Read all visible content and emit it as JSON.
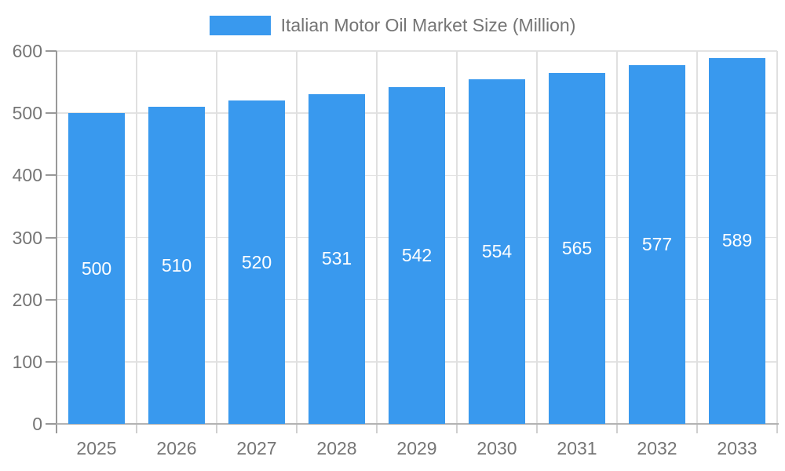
{
  "chart_data": {
    "type": "bar",
    "series_name": "Italian Motor Oil Market Size (Million)",
    "categories": [
      "2025",
      "2026",
      "2027",
      "2028",
      "2029",
      "2030",
      "2031",
      "2032",
      "2033"
    ],
    "values": [
      500,
      510,
      520,
      531,
      542,
      554,
      565,
      577,
      589
    ],
    "value_labels": [
      "500",
      "510",
      "520",
      "531",
      "542",
      "554",
      "565",
      "577",
      "589"
    ],
    "xlabel": "",
    "ylabel": "",
    "ylim": [
      0,
      600
    ],
    "yticks": [
      0,
      100,
      200,
      300,
      400,
      500,
      600
    ],
    "grid": true,
    "legend_position": "top",
    "value_label_position": "center-of-bar"
  },
  "colors": {
    "bar": "#3999EE",
    "value_label": "#FFFFFF",
    "tick_label": "#757575",
    "legend_text": "#757575",
    "h_gridline": "#E3E3E3",
    "v_gridline": "#E0E0E0",
    "y_axis_line": "#999999",
    "x_axis_line": "#B3B3B3",
    "x_tick_mark": "#CFCFCF",
    "background": "#FFFFFF"
  }
}
